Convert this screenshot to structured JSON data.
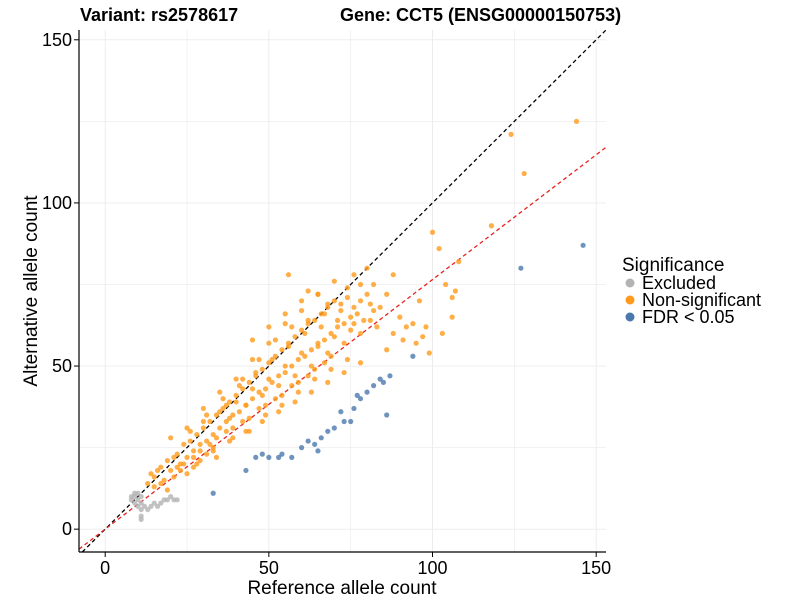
{
  "chart_data": {
    "type": "scatter",
    "title_variant": "Variant: rs2578617",
    "title_gene": "Gene: CCT5 (ENSG00000150753)",
    "xlabel": "Reference allele count",
    "ylabel": "Alternative allele count",
    "xlim": [
      -8,
      153
    ],
    "ylim": [
      -7,
      153
    ],
    "xticks": [
      0,
      50,
      100,
      150
    ],
    "yticks": [
      0,
      50,
      100,
      150
    ],
    "grid": true,
    "legend": {
      "title": "Significance",
      "position": "right",
      "entries": [
        {
          "key": "excluded",
          "label": "Excluded",
          "color": "#b3b3b3"
        },
        {
          "key": "nonsig",
          "label": "Non-significant",
          "color": "#ff9a1a"
        },
        {
          "key": "fdr",
          "label": "FDR < 0.05",
          "color": "#4a78ad"
        }
      ]
    },
    "reference_lines": [
      {
        "name": "identity",
        "slope": 1.0,
        "intercept": 0,
        "color": "#000000",
        "dash": "dashed"
      },
      {
        "name": "fit",
        "slope": 0.765,
        "intercept": 0,
        "color": "#e8221f",
        "dash": "dashed"
      }
    ],
    "series": [
      {
        "name": "Excluded",
        "color": "#b3b3b3",
        "points": [
          [
            8,
            9
          ],
          [
            8,
            10
          ],
          [
            9,
            8
          ],
          [
            9,
            11
          ],
          [
            10,
            9
          ],
          [
            10,
            7
          ],
          [
            11,
            8
          ],
          [
            11,
            10
          ],
          [
            11,
            6
          ],
          [
            11,
            3
          ],
          [
            11,
            4
          ],
          [
            12,
            7
          ],
          [
            13,
            6
          ],
          [
            14,
            7
          ],
          [
            15,
            8
          ],
          [
            16,
            7
          ],
          [
            17,
            8
          ],
          [
            18,
            9
          ],
          [
            19,
            9
          ],
          [
            20,
            10
          ],
          [
            21,
            9
          ],
          [
            22,
            9
          ],
          [
            9,
            10
          ],
          [
            10,
            11
          ]
        ]
      },
      {
        "name": "Non-significant",
        "color": "#ff9a1a",
        "points": [
          [
            13,
            14
          ],
          [
            14,
            17
          ],
          [
            15,
            16
          ],
          [
            16,
            18
          ],
          [
            17,
            19
          ],
          [
            18,
            15
          ],
          [
            19,
            21
          ],
          [
            20,
            18
          ],
          [
            21,
            22
          ],
          [
            22,
            23
          ],
          [
            23,
            20
          ],
          [
            24,
            26
          ],
          [
            25,
            22
          ],
          [
            26,
            27
          ],
          [
            27,
            24
          ],
          [
            28,
            29
          ],
          [
            29,
            26
          ],
          [
            30,
            31
          ],
          [
            31,
            27
          ],
          [
            32,
            33
          ],
          [
            33,
            29
          ],
          [
            34,
            35
          ],
          [
            35,
            31
          ],
          [
            36,
            37
          ],
          [
            37,
            33
          ],
          [
            38,
            39
          ],
          [
            39,
            35
          ],
          [
            40,
            41
          ],
          [
            41,
            36
          ],
          [
            42,
            43
          ],
          [
            43,
            38
          ],
          [
            44,
            45
          ],
          [
            45,
            40
          ],
          [
            46,
            47
          ],
          [
            47,
            42
          ],
          [
            48,
            49
          ],
          [
            49,
            43
          ],
          [
            50,
            51
          ],
          [
            51,
            45
          ],
          [
            52,
            53
          ],
          [
            53,
            47
          ],
          [
            54,
            55
          ],
          [
            55,
            48
          ],
          [
            56,
            57
          ],
          [
            57,
            50
          ],
          [
            58,
            59
          ],
          [
            59,
            52
          ],
          [
            60,
            61
          ],
          [
            61,
            53
          ],
          [
            62,
            63
          ],
          [
            63,
            55
          ],
          [
            64,
            64
          ],
          [
            65,
            57
          ],
          [
            66,
            66
          ],
          [
            67,
            58
          ],
          [
            68,
            68
          ],
          [
            69,
            60
          ],
          [
            70,
            70
          ],
          [
            71,
            62
          ],
          [
            72,
            69
          ],
          [
            73,
            63
          ],
          [
            74,
            71
          ],
          [
            75,
            65
          ],
          [
            76,
            68
          ],
          [
            77,
            66
          ],
          [
            78,
            70
          ],
          [
            79,
            64
          ],
          [
            80,
            72
          ],
          [
            81,
            69
          ],
          [
            82,
            67
          ],
          [
            20,
            28
          ],
          [
            25,
            31
          ],
          [
            30,
            37
          ],
          [
            35,
            42
          ],
          [
            40,
            46
          ],
          [
            45,
            52
          ],
          [
            50,
            57
          ],
          [
            55,
            63
          ],
          [
            60,
            67
          ],
          [
            65,
            72
          ],
          [
            22,
            19
          ],
          [
            27,
            22
          ],
          [
            32,
            26
          ],
          [
            37,
            30
          ],
          [
            42,
            33
          ],
          [
            47,
            37
          ],
          [
            52,
            40
          ],
          [
            57,
            44
          ],
          [
            62,
            47
          ],
          [
            67,
            51
          ],
          [
            24,
            20
          ],
          [
            29,
            24
          ],
          [
            34,
            28
          ],
          [
            39,
            31
          ],
          [
            44,
            34
          ],
          [
            49,
            38
          ],
          [
            54,
            41
          ],
          [
            59,
            45
          ],
          [
            64,
            49
          ],
          [
            69,
            53
          ],
          [
            36,
            40
          ],
          [
            41,
            44
          ],
          [
            46,
            48
          ],
          [
            51,
            52
          ],
          [
            56,
            56
          ],
          [
            61,
            60
          ],
          [
            66,
            62
          ],
          [
            71,
            64
          ],
          [
            76,
            63
          ],
          [
            81,
            64
          ],
          [
            38,
            34
          ],
          [
            43,
            38
          ],
          [
            48,
            41
          ],
          [
            53,
            44
          ],
          [
            58,
            47
          ],
          [
            63,
            50
          ],
          [
            68,
            54
          ],
          [
            73,
            57
          ],
          [
            78,
            60
          ],
          [
            83,
            62
          ],
          [
            30,
            33
          ],
          [
            35,
            36
          ],
          [
            40,
            39
          ],
          [
            45,
            43
          ],
          [
            50,
            46
          ],
          [
            55,
            50
          ],
          [
            60,
            54
          ],
          [
            65,
            56
          ],
          [
            70,
            59
          ],
          [
            75,
            61
          ],
          [
            33,
            24
          ],
          [
            38,
            27
          ],
          [
            43,
            30
          ],
          [
            48,
            33
          ],
          [
            53,
            36
          ],
          [
            58,
            39
          ],
          [
            63,
            42
          ],
          [
            68,
            45
          ],
          [
            73,
            48
          ],
          [
            78,
            51
          ],
          [
            45,
            58
          ],
          [
            50,
            62
          ],
          [
            55,
            66
          ],
          [
            60,
            70
          ],
          [
            65,
            72
          ],
          [
            70,
            76
          ],
          [
            56,
            78
          ],
          [
            62,
            73
          ],
          [
            68,
            69
          ],
          [
            74,
            74
          ],
          [
            76,
            78
          ],
          [
            78,
            75
          ],
          [
            80,
            80
          ],
          [
            82,
            75
          ],
          [
            84,
            68
          ],
          [
            86,
            72
          ],
          [
            88,
            78
          ],
          [
            90,
            65
          ],
          [
            92,
            62
          ],
          [
            95,
            57
          ],
          [
            98,
            62
          ],
          [
            100,
            91
          ],
          [
            102,
            86
          ],
          [
            104,
            75
          ],
          [
            106,
            71
          ],
          [
            107,
            73
          ],
          [
            108,
            82
          ],
          [
            106,
            65
          ],
          [
            103,
            60
          ],
          [
            96,
            70
          ],
          [
            118,
            93
          ],
          [
            124,
            121
          ],
          [
            128,
            109
          ],
          [
            144,
            125
          ],
          [
            86,
            55
          ],
          [
            88,
            60
          ],
          [
            91,
            58
          ],
          [
            94,
            63
          ],
          [
            97,
            59
          ],
          [
            99,
            54
          ],
          [
            26,
            30
          ],
          [
            28,
            20
          ],
          [
            31,
            35
          ],
          [
            34,
            22
          ],
          [
            37,
            38
          ],
          [
            39,
            28
          ],
          [
            42,
            46
          ],
          [
            44,
            30
          ],
          [
            47,
            52
          ],
          [
            49,
            35
          ],
          [
            52,
            58
          ],
          [
            54,
            38
          ],
          [
            57,
            62
          ],
          [
            59,
            42
          ],
          [
            62,
            64
          ],
          [
            64,
            46
          ],
          [
            67,
            66
          ],
          [
            69,
            49
          ],
          [
            72,
            67
          ],
          [
            74,
            52
          ],
          [
            15,
            13
          ],
          [
            17,
            14
          ],
          [
            19,
            12
          ],
          [
            21,
            16
          ],
          [
            23,
            18
          ],
          [
            25,
            17
          ],
          [
            27,
            19
          ],
          [
            29,
            21
          ],
          [
            31,
            23
          ],
          [
            33,
            25
          ]
        ]
      },
      {
        "name": "FDR < 0.05",
        "color": "#4a78ad",
        "points": [
          [
            33,
            11
          ],
          [
            43,
            18
          ],
          [
            46,
            22
          ],
          [
            48,
            23
          ],
          [
            50,
            22
          ],
          [
            53,
            22
          ],
          [
            54,
            23
          ],
          [
            57,
            22
          ],
          [
            60,
            25
          ],
          [
            62,
            27
          ],
          [
            64,
            26
          ],
          [
            66,
            28
          ],
          [
            68,
            30
          ],
          [
            70,
            31
          ],
          [
            73,
            33
          ],
          [
            75,
            33
          ],
          [
            76,
            37
          ],
          [
            77,
            41
          ],
          [
            78,
            40
          ],
          [
            80,
            42
          ],
          [
            82,
            44
          ],
          [
            84,
            46
          ],
          [
            85,
            45
          ],
          [
            87,
            47
          ],
          [
            94,
            53
          ],
          [
            86,
            35
          ],
          [
            72,
            36
          ],
          [
            127,
            80
          ],
          [
            146,
            87
          ],
          [
            65,
            24
          ]
        ]
      }
    ]
  }
}
